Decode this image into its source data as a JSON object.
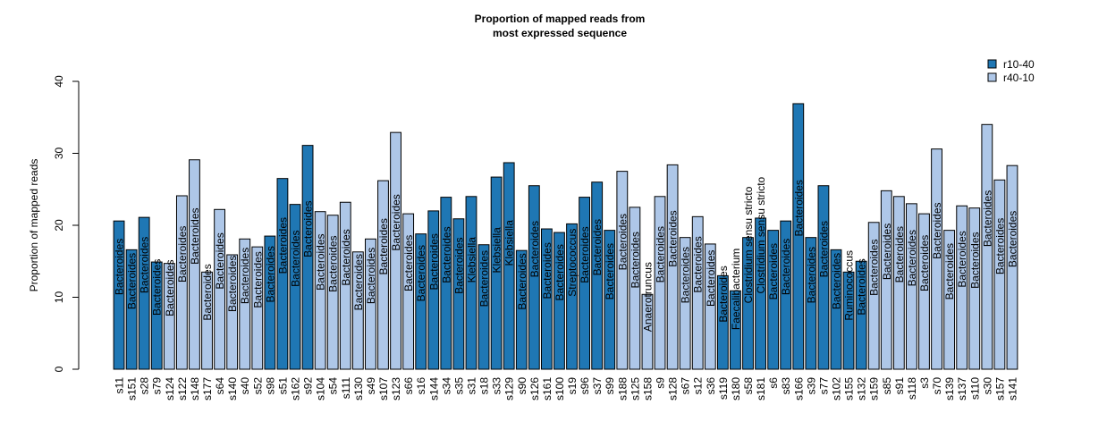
{
  "chart_data": {
    "type": "bar",
    "title": [
      "Proportion of mapped reads from",
      "most expressed sequence"
    ],
    "xlabel": "",
    "ylabel": "Proportion of mapped reads",
    "ylim": [
      0,
      40
    ],
    "yticks": [
      0,
      10,
      20,
      30,
      40
    ],
    "grid": false,
    "legend_position": "top-right",
    "legend": [
      {
        "name": "r10-40",
        "color": "#1f77b4"
      },
      {
        "name": "r40-10",
        "color": "#aec7e8"
      }
    ],
    "bars": [
      {
        "sample": "s11",
        "value": 20.6,
        "group": "r10-40",
        "genus": "Bacteroides"
      },
      {
        "sample": "s151",
        "value": 16.6,
        "group": "r10-40",
        "genus": "Bacteroides"
      },
      {
        "sample": "s28",
        "value": 21.1,
        "group": "r10-40",
        "genus": "Bacteroides"
      },
      {
        "sample": "s79",
        "value": 14.9,
        "group": "r10-40",
        "genus": "Bacteroides"
      },
      {
        "sample": "s124",
        "value": 14.7,
        "group": "r40-10",
        "genus": "Bacteroides"
      },
      {
        "sample": "s122",
        "value": 24.1,
        "group": "r40-10",
        "genus": "Bacteroides"
      },
      {
        "sample": "s148",
        "value": 29.1,
        "group": "r40-10",
        "genus": "Bacteroides"
      },
      {
        "sample": "s177",
        "value": 13.5,
        "group": "r40-10",
        "genus": "Bacteroides"
      },
      {
        "sample": "s64",
        "value": 22.2,
        "group": "r40-10",
        "genus": "Bacteroides"
      },
      {
        "sample": "s140",
        "value": 15.9,
        "group": "r40-10",
        "genus": "Bacteroides"
      },
      {
        "sample": "s40",
        "value": 18.1,
        "group": "r40-10",
        "genus": "Bacteroides"
      },
      {
        "sample": "s52",
        "value": 17.0,
        "group": "r40-10",
        "genus": "Bacteroides"
      },
      {
        "sample": "s98",
        "value": 18.5,
        "group": "r10-40",
        "genus": "Bacteroides"
      },
      {
        "sample": "s51",
        "value": 26.5,
        "group": "r10-40",
        "genus": "Bacteroides"
      },
      {
        "sample": "s162",
        "value": 22.9,
        "group": "r10-40",
        "genus": "Bacteroides"
      },
      {
        "sample": "s92",
        "value": 31.1,
        "group": "r10-40",
        "genus": "Bacteroides"
      },
      {
        "sample": "s104",
        "value": 21.9,
        "group": "r40-10",
        "genus": "Bacteroides"
      },
      {
        "sample": "s54",
        "value": 21.4,
        "group": "r40-10",
        "genus": "Bacteroides"
      },
      {
        "sample": "s111",
        "value": 23.2,
        "group": "r40-10",
        "genus": "Bacteroides"
      },
      {
        "sample": "s130",
        "value": 16.3,
        "group": "r40-10",
        "genus": "Bacteroides"
      },
      {
        "sample": "s49",
        "value": 18.1,
        "group": "r40-10",
        "genus": "Bacteroides"
      },
      {
        "sample": "s107",
        "value": 26.2,
        "group": "r40-10",
        "genus": "Bacteroides"
      },
      {
        "sample": "s123",
        "value": 32.9,
        "group": "r40-10",
        "genus": "Bacteroides"
      },
      {
        "sample": "s66",
        "value": 21.6,
        "group": "r40-10",
        "genus": "Bacteroides"
      },
      {
        "sample": "s16",
        "value": 18.8,
        "group": "r10-40",
        "genus": "Bacteroides"
      },
      {
        "sample": "s144",
        "value": 22.0,
        "group": "r10-40",
        "genus": "Bacteroides"
      },
      {
        "sample": "s34",
        "value": 23.9,
        "group": "r10-40",
        "genus": "Bacteroides"
      },
      {
        "sample": "s35",
        "value": 20.9,
        "group": "r10-40",
        "genus": "Bacteroides"
      },
      {
        "sample": "s31",
        "value": 24.0,
        "group": "r10-40",
        "genus": "Klebsiella"
      },
      {
        "sample": "s18",
        "value": 17.3,
        "group": "r10-40",
        "genus": "Bacteroides"
      },
      {
        "sample": "s33",
        "value": 26.7,
        "group": "r10-40",
        "genus": "Klebsiella"
      },
      {
        "sample": "s129",
        "value": 28.7,
        "group": "r10-40",
        "genus": "Klebsiella"
      },
      {
        "sample": "s90",
        "value": 16.5,
        "group": "r10-40",
        "genus": "Bacteroides"
      },
      {
        "sample": "s126",
        "value": 25.5,
        "group": "r10-40",
        "genus": "Bacteroides"
      },
      {
        "sample": "s161",
        "value": 19.5,
        "group": "r10-40",
        "genus": "Bacteroides"
      },
      {
        "sample": "s100",
        "value": 19.0,
        "group": "r10-40",
        "genus": "Bacteroides"
      },
      {
        "sample": "s19",
        "value": 20.2,
        "group": "r10-40",
        "genus": "Streptococcus"
      },
      {
        "sample": "s96",
        "value": 23.9,
        "group": "r10-40",
        "genus": "Bacteroides"
      },
      {
        "sample": "s37",
        "value": 26.0,
        "group": "r10-40",
        "genus": "Bacteroides"
      },
      {
        "sample": "s99",
        "value": 19.3,
        "group": "r10-40",
        "genus": "Bacteroides"
      },
      {
        "sample": "s188",
        "value": 27.5,
        "group": "r40-10",
        "genus": "Bacteroides"
      },
      {
        "sample": "s125",
        "value": 22.5,
        "group": "r40-10",
        "genus": "Bacteroides"
      },
      {
        "sample": "s158",
        "value": 10.4,
        "group": "r40-10",
        "genus": "Anaerotruncus"
      },
      {
        "sample": "s9",
        "value": 24.0,
        "group": "r40-10",
        "genus": "Bacteroides"
      },
      {
        "sample": "s128",
        "value": 28.4,
        "group": "r40-10",
        "genus": "Bacteroides"
      },
      {
        "sample": "s67",
        "value": 18.3,
        "group": "r40-10",
        "genus": "Bacteroides"
      },
      {
        "sample": "s12",
        "value": 21.2,
        "group": "r40-10",
        "genus": "Bacteroides"
      },
      {
        "sample": "s36",
        "value": 17.4,
        "group": "r40-10",
        "genus": "Bacteroides"
      },
      {
        "sample": "s119",
        "value": 13.0,
        "group": "r10-40",
        "genus": "Bacteroides"
      },
      {
        "sample": "s180",
        "value": 10.9,
        "group": "r10-40",
        "genus": "Faecalibacterium"
      },
      {
        "sample": "s58",
        "value": 18.3,
        "group": "r10-40",
        "genus": "Clostridium sensu stricto"
      },
      {
        "sample": "s181",
        "value": 21.0,
        "group": "r10-40",
        "genus": "Clostridium sensu stricto"
      },
      {
        "sample": "s6",
        "value": 19.3,
        "group": "r10-40",
        "genus": "Bacteroides"
      },
      {
        "sample": "s83",
        "value": 20.6,
        "group": "r10-40",
        "genus": "Bacteroides"
      },
      {
        "sample": "s166",
        "value": 36.9,
        "group": "r10-40",
        "genus": "Bacteroides"
      },
      {
        "sample": "s39",
        "value": 18.3,
        "group": "r10-40",
        "genus": "Bacteroides"
      },
      {
        "sample": "s77",
        "value": 25.5,
        "group": "r10-40",
        "genus": "Bacteroides"
      },
      {
        "sample": "s102",
        "value": 16.6,
        "group": "r10-40",
        "genus": "Bacteroides"
      },
      {
        "sample": "s155",
        "value": 13.5,
        "group": "r10-40",
        "genus": "Ruminococcus"
      },
      {
        "sample": "s132",
        "value": 15.0,
        "group": "r10-40",
        "genus": "Bacteroides"
      },
      {
        "sample": "s159",
        "value": 20.4,
        "group": "r40-10",
        "genus": "Bacteroides"
      },
      {
        "sample": "s85",
        "value": 24.8,
        "group": "r40-10",
        "genus": "Bacteroides"
      },
      {
        "sample": "s91",
        "value": 24.0,
        "group": "r40-10",
        "genus": "Bacteroides"
      },
      {
        "sample": "s118",
        "value": 23.0,
        "group": "r40-10",
        "genus": "Bacteroides"
      },
      {
        "sample": "s3",
        "value": 21.6,
        "group": "r40-10",
        "genus": "Bacteroides"
      },
      {
        "sample": "s70",
        "value": 30.6,
        "group": "r40-10",
        "genus": "Bacteroides"
      },
      {
        "sample": "s139",
        "value": 19.3,
        "group": "r40-10",
        "genus": "Bacteroides"
      },
      {
        "sample": "s137",
        "value": 22.7,
        "group": "r40-10",
        "genus": "Bacteroides"
      },
      {
        "sample": "s110",
        "value": 22.4,
        "group": "r40-10",
        "genus": "Bacteroides"
      },
      {
        "sample": "s30",
        "value": 34.0,
        "group": "r40-10",
        "genus": "Bacteroides"
      },
      {
        "sample": "s157",
        "value": 26.3,
        "group": "r40-10",
        "genus": "Bacteroides"
      },
      {
        "sample": "s141",
        "value": 28.3,
        "group": "r40-10",
        "genus": "Bacteroides"
      }
    ]
  }
}
